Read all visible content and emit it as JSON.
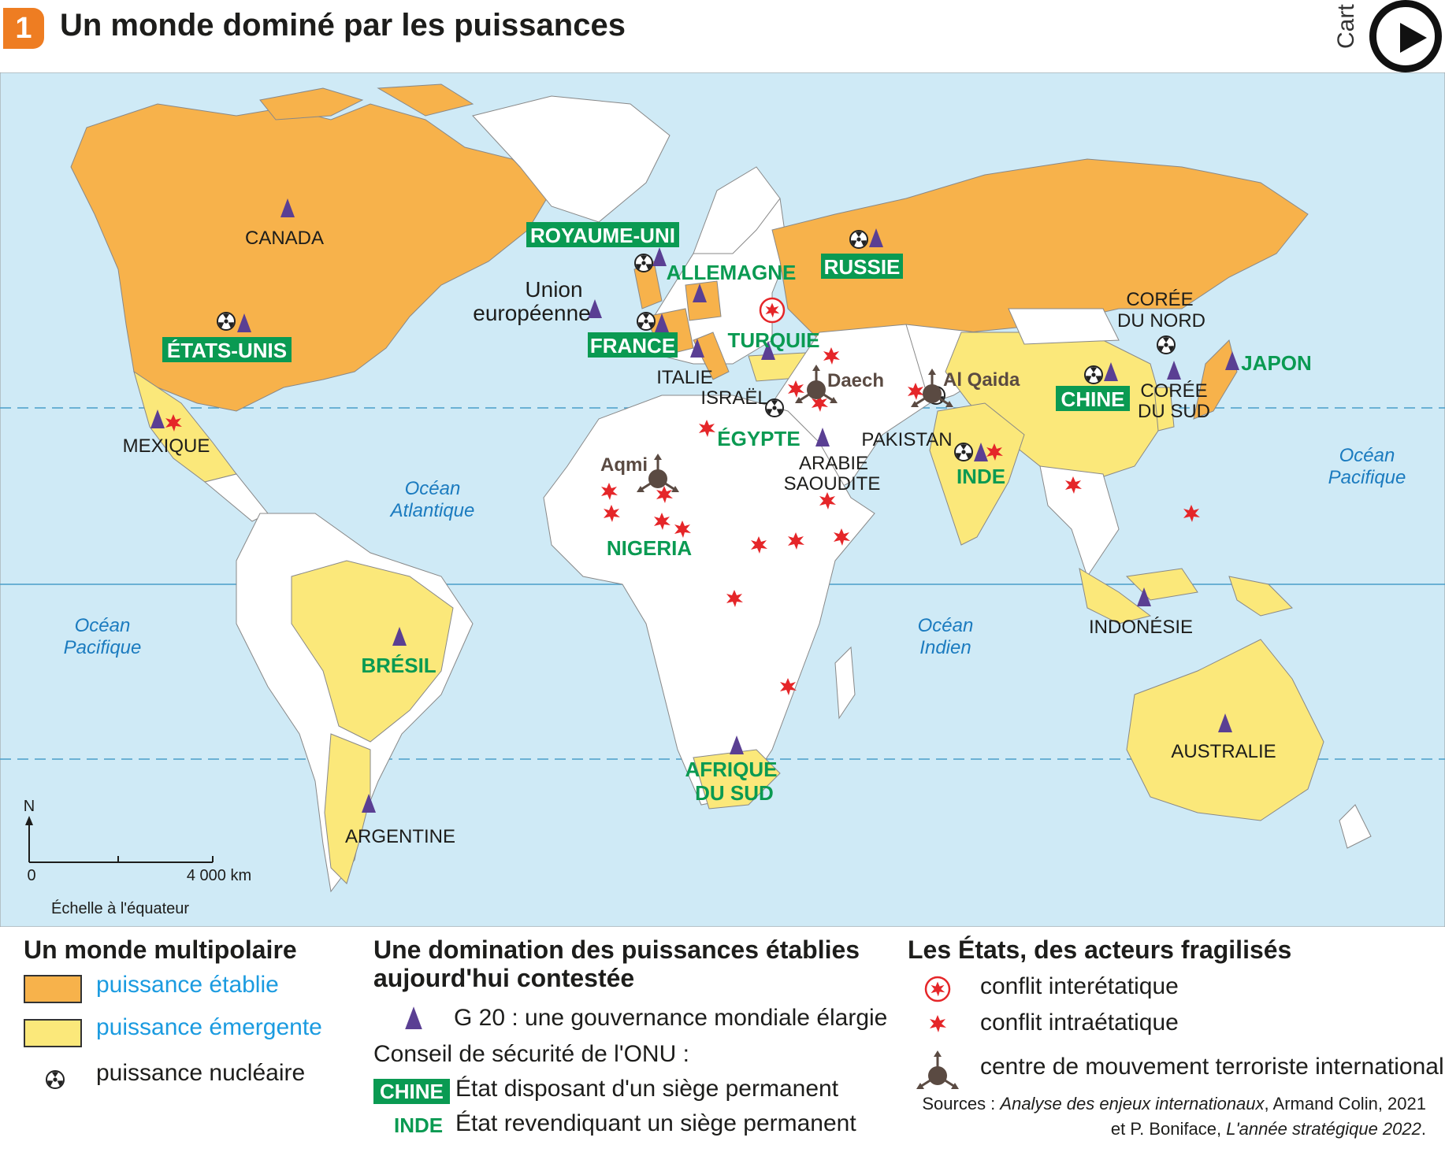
{
  "header": {
    "number": "1",
    "title": "Un monde dominé par les puissances",
    "side_tag": "Cart"
  },
  "colors": {
    "established": "#f7b24b",
    "emerging": "#fbe87a",
    "ocean": "#cfeaf6",
    "land_other": "#ffffff",
    "un_green": "#0a9a52",
    "g20_purple": "#5a3f93",
    "conflict_red": "#e52629",
    "terror_brown": "#5a4a42",
    "ocean_label": "#1b7bbf"
  },
  "map": {
    "countries": {
      "canada": "CANADA",
      "usa": "ÉTATS-UNIS",
      "mexique": "MEXIQUE",
      "bresil": "BRÉSIL",
      "argentine": "ARGENTINE",
      "royaume_uni": "ROYAUME-UNI",
      "allemagne": "ALLEMAGNE",
      "france": "FRANCE",
      "italie": "ITALIE",
      "turquie": "TURQUIE",
      "israel": "ISRAËL",
      "egypte": "ÉGYPTE",
      "nigeria": "NIGERIA",
      "afrique_sud_1": "AFRIQUE",
      "afrique_sud_2": "DU SUD",
      "russie": "RUSSIE",
      "arabie_1": "ARABIE",
      "arabie_2": "SAOUDITE",
      "pakistan": "PAKISTAN",
      "inde": "INDE",
      "chine": "CHINE",
      "coree_nord_1": "CORÉE",
      "coree_nord_2": "DU NORD",
      "coree_sud_1": "CORÉE",
      "coree_sud_2": "DU SUD",
      "japon": "JAPON",
      "indonesie": "INDONÉSIE",
      "australie": "AUSTRALIE",
      "ue_1": "Union",
      "ue_2": "européenne"
    },
    "terror_groups": {
      "daech": "Daech",
      "al_qaida": "Al Qaida",
      "aqmi": "Aqmi"
    },
    "oceans": {
      "atl_1": "Océan",
      "atl_2": "Atlantique",
      "pac_w_1": "Océan",
      "pac_w_2": "Pacifique",
      "pac_e_1": "Océan",
      "pac_e_2": "Pacifique",
      "ind_1": "Océan",
      "ind_2": "Indien"
    },
    "scale": {
      "north": "N",
      "zero": "0",
      "distance": "4 000 km",
      "caption": "Échelle à l'équateur"
    }
  },
  "legend": {
    "col1": {
      "heading": "Un monde multipolaire",
      "established": "puissance établie",
      "emerging": "puissance émergente",
      "nuclear": "puissance nucléaire"
    },
    "col2": {
      "heading_1": "Une domination des puissances établies",
      "heading_2": "aujourd'hui contestée",
      "g20": "G 20 : une gouvernance mondiale élargie",
      "unsc": "Conseil de sécurité de l'ONU :",
      "permanent_example": "CHINE",
      "permanent": "État disposant d'un siège permanent",
      "claim_example": "INDE",
      "claim": "État revendiquant un siège permanent"
    },
    "col3": {
      "heading": "Les États, des acteurs fragilisés",
      "interstate": "conflit interétatique",
      "intrastate": "conflit intraétatique",
      "terror": "centre de mouvement terroriste internationalisé"
    },
    "sources": {
      "prefix": "Sources : ",
      "work1": "Analyse des enjeux internationaux",
      "rest1": ", Armand Colin, 2021",
      "prefix2": "et P. Boniface, ",
      "work2": "L'année stratégique 2022",
      "end": "."
    }
  }
}
